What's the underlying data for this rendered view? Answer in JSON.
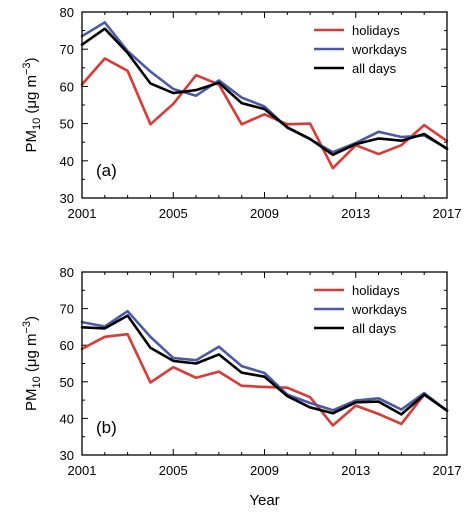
{
  "chart_data": [
    {
      "type": "line",
      "panel_label": "(a)",
      "x": [
        2001,
        2002,
        2003,
        2004,
        2005,
        2006,
        2007,
        2008,
        2009,
        2010,
        2011,
        2012,
        2013,
        2014,
        2015,
        2016,
        2017
      ],
      "xticks": [
        "2001",
        "2005",
        "2009",
        "2013",
        "2017"
      ],
      "yticks": [
        "30",
        "40",
        "50",
        "60",
        "70",
        "80"
      ],
      "xlim": [
        2001,
        2017
      ],
      "ylim": [
        30,
        80
      ],
      "ylabel": "PM10 (μg m−3)",
      "ylabel_parts": {
        "base": "PM",
        "sub": "10",
        "unit_open": " (μg m",
        "sup": "−3",
        "unit_close": ")"
      },
      "legend_position": "top-right",
      "series": [
        {
          "name": "holidays",
          "color": "#d93a35",
          "values": [
            60.5,
            67.5,
            64.2,
            49.8,
            55.3,
            63.0,
            60.5,
            49.8,
            52.5,
            49.8,
            50.0,
            38.0,
            44.2,
            41.8,
            44.2,
            49.6,
            45.3
          ]
        },
        {
          "name": "workdays",
          "color": "#4b5aa7",
          "values": [
            73.5,
            77.2,
            69.5,
            64.0,
            59.3,
            57.5,
            61.6,
            57.0,
            54.6,
            48.9,
            45.8,
            42.3,
            44.8,
            47.8,
            46.4,
            46.8,
            43.4
          ]
        },
        {
          "name": "all days",
          "color": "#000000",
          "values": [
            71.2,
            75.5,
            69.0,
            60.8,
            58.2,
            59.0,
            61.0,
            55.5,
            53.9,
            49.0,
            45.9,
            41.6,
            44.5,
            46.0,
            45.4,
            47.2,
            43.2
          ]
        }
      ]
    },
    {
      "type": "line",
      "panel_label": "(b)",
      "x": [
        2001,
        2002,
        2003,
        2004,
        2005,
        2006,
        2007,
        2008,
        2009,
        2010,
        2011,
        2012,
        2013,
        2014,
        2015,
        2016,
        2017
      ],
      "xticks": [
        "2001",
        "2005",
        "2009",
        "2013",
        "2017"
      ],
      "yticks": [
        "30",
        "40",
        "50",
        "60",
        "70",
        "80"
      ],
      "xlim": [
        2001,
        2017
      ],
      "ylim": [
        30,
        80
      ],
      "xlabel": "Year",
      "ylabel": "PM10 (μg m−3)",
      "ylabel_parts": {
        "base": "PM",
        "sub": "10",
        "unit_open": " (μg m",
        "sup": "−3",
        "unit_close": ")"
      },
      "legend_position": "top-right",
      "series": [
        {
          "name": "holidays",
          "color": "#d93a35",
          "values": [
            59.0,
            62.3,
            63.0,
            49.8,
            54.0,
            51.1,
            52.8,
            48.9,
            48.6,
            48.4,
            45.8,
            38.1,
            43.5,
            41.2,
            38.5,
            46.5,
            42.2
          ]
        },
        {
          "name": "workdays",
          "color": "#4b5aa7",
          "values": [
            66.3,
            65.1,
            69.3,
            62.3,
            56.5,
            55.9,
            59.6,
            54.3,
            52.4,
            46.5,
            44.2,
            42.2,
            44.9,
            45.5,
            42.4,
            46.9,
            42.1
          ]
        },
        {
          "name": "all days",
          "color": "#000000",
          "values": [
            64.9,
            64.6,
            68.1,
            59.3,
            55.7,
            55.0,
            57.5,
            52.5,
            51.4,
            46.1,
            43.0,
            41.4,
            44.4,
            44.6,
            41.1,
            46.5,
            42.1
          ]
        }
      ]
    }
  ]
}
